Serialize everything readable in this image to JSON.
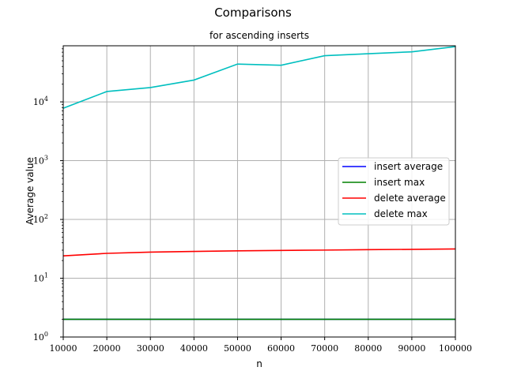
{
  "chart_data": {
    "type": "line",
    "title": "Comparisons",
    "subtitle": "for ascending inserts",
    "xlabel": "n",
    "ylabel": "Average value",
    "xlim": [
      10000,
      100000
    ],
    "ylim": [
      1,
      90000
    ],
    "yscale": "log",
    "grid": true,
    "legend_position": "center-right",
    "x": [
      10000,
      20000,
      30000,
      40000,
      50000,
      60000,
      70000,
      80000,
      90000,
      100000
    ],
    "x_ticks": [
      "10000",
      "20000",
      "30000",
      "40000",
      "50000",
      "60000",
      "70000",
      "80000",
      "90000",
      "100000"
    ],
    "y_ticks": [
      {
        "value": 1,
        "base": "10",
        "exp": "0"
      },
      {
        "value": 10,
        "base": "10",
        "exp": "1"
      },
      {
        "value": 100,
        "base": "10",
        "exp": "2"
      },
      {
        "value": 1000,
        "base": "10",
        "exp": "3"
      },
      {
        "value": 10000,
        "base": "10",
        "exp": "4"
      }
    ],
    "series": [
      {
        "name": "insert average",
        "color": "#0000ff",
        "values": [
          2,
          2,
          2,
          2,
          2,
          2,
          2,
          2,
          2,
          2
        ]
      },
      {
        "name": "insert max",
        "color": "#008000",
        "values": [
          2,
          2,
          2,
          2,
          2,
          2,
          2,
          2,
          2,
          2
        ]
      },
      {
        "name": "delete average",
        "color": "#ff0000",
        "values": [
          24,
          26.5,
          27.8,
          28.6,
          29.2,
          29.7,
          30.1,
          30.6,
          31,
          31.5
        ]
      },
      {
        "name": "delete max",
        "color": "#00bfbf",
        "values": [
          7800,
          15000,
          17500,
          23500,
          44000,
          42000,
          61000,
          66000,
          71000,
          87000
        ]
      }
    ]
  }
}
